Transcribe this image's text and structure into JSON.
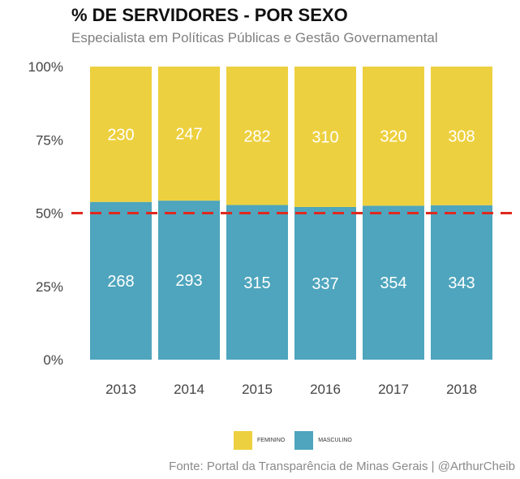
{
  "title": "% DE SERVIDORES - POR SEXO",
  "subtitle": "Especialista em Políticas Públicas e Gestão Governamental",
  "caption": "Fonte: Portal da Transparência de Minas Gerais | @ArthurCheib",
  "colors": {
    "feminino": "#edd03f",
    "masculino": "#4ea5bd",
    "reference_line": "#e0291f",
    "text_on_bar": "#ffffff",
    "tick_text": "#444444"
  },
  "legend": {
    "items": [
      {
        "label": "FEMININO",
        "color": "#edd03f"
      },
      {
        "label": "MASCULINO",
        "color": "#4ea5bd"
      }
    ],
    "position": "bottom"
  },
  "chart_data": {
    "type": "bar",
    "stacked": "percent",
    "categories": [
      "2013",
      "2014",
      "2015",
      "2016",
      "2017",
      "2018"
    ],
    "series": [
      {
        "name": "MASCULINO",
        "values": [
          268,
          293,
          315,
          337,
          354,
          343
        ]
      },
      {
        "name": "FEMININO",
        "values": [
          230,
          247,
          282,
          310,
          320,
          308
        ]
      }
    ],
    "y_ticks": [
      "0%",
      "25%",
      "50%",
      "75%",
      "100%"
    ],
    "ylim": [
      0,
      100
    ],
    "reference_line": 50,
    "grid": false,
    "title": "% DE SERVIDORES - POR SEXO",
    "xlabel": "",
    "ylabel": ""
  }
}
